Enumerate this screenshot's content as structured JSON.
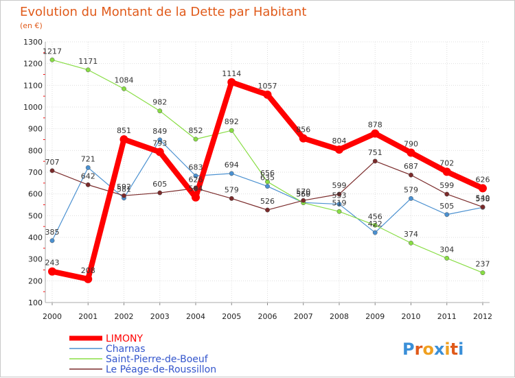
{
  "chart_data": {
    "type": "line",
    "title": "Evolution du Montant de la Dette par Habitant",
    "subtitle": "(en €)",
    "xlabel": "",
    "ylabel": "",
    "x": [
      "2000",
      "2001",
      "2002",
      "2003",
      "2004",
      "2005",
      "2006",
      "2007",
      "2008",
      "2009",
      "2010",
      "2011",
      "2012"
    ],
    "ylim": [
      100,
      1300
    ],
    "yticks": [
      "100",
      "200",
      "300",
      "400",
      "500",
      "600",
      "700",
      "800",
      "900",
      "1000",
      "1100",
      "1200",
      "1300"
    ],
    "grid": true,
    "legend_placement": "bottom-left",
    "series": [
      {
        "name": "LIMONY",
        "color": "#ff0000",
        "values": [
          243,
          208,
          851,
          793,
          584,
          1114,
          1057,
          856,
          804,
          878,
          790,
          702,
          626
        ],
        "labels": [
          "243",
          "208",
          "851",
          "793",
          "584",
          "1114",
          "1057",
          "856",
          "804",
          "878",
          "790",
          "702",
          "626"
        ]
      },
      {
        "name": "Charnas",
        "color": "#4a90d0",
        "values": [
          385,
          721,
          581,
          849,
          683,
          694,
          635,
          560,
          553,
          422,
          579,
          505,
          538
        ],
        "labels": [
          "385",
          "721",
          "581",
          "849",
          "683",
          "694",
          "635",
          "560",
          "553",
          "422",
          "579",
          "505",
          "538"
        ]
      },
      {
        "name": "Saint-Pierre-de-Boeuf",
        "color": "#88dd44",
        "values": [
          1217,
          1171,
          1084,
          982,
          852,
          892,
          656,
          559,
          519,
          456,
          374,
          304,
          237
        ],
        "labels": [
          "1217",
          "1171",
          "1084",
          "982",
          "852",
          "892",
          "656",
          "559",
          "519",
          "456",
          "374",
          "304",
          "237"
        ]
      },
      {
        "name": "Le Péage-de-Roussillon",
        "color": "#7a2a2a",
        "values": [
          707,
          642,
          592,
          605,
          626,
          579,
          526,
          570,
          599,
          751,
          687,
          599,
          540
        ],
        "labels": [
          "707",
          "642",
          "592",
          "605",
          "626",
          "579",
          "526",
          "570",
          "599",
          "751",
          "687",
          "599",
          "540"
        ]
      }
    ]
  },
  "logo": {
    "text": "Proxiti"
  }
}
